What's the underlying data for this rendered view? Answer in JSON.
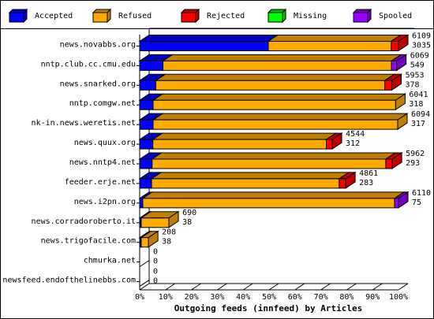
{
  "chart_data": {
    "type": "bar3d_stacked_horizontal",
    "title": "Outgoing feeds (innfeed) by Articles",
    "categories": [
      "news.novabbs.org",
      "nntp.club.cc.cmu.edu",
      "news.snarked.org",
      "nntp.comgw.net",
      "nk-in.news.weretis.net",
      "news.quux.org",
      "news.nntp4.net",
      "feeder.erje.net",
      "news.i2pn.org",
      "news.corradoroberto.it",
      "news.trigofacile.com",
      "chmurka.net",
      "newsfeed.endofthelinebbs.com"
    ],
    "series": [
      {
        "name": "Accepted",
        "color": "#0000ff",
        "values": [
          49.7,
          9.0,
          6.2,
          5.2,
          5.2,
          5.1,
          4.8,
          4.6,
          1.2,
          0.6,
          0.6,
          0,
          0
        ]
      },
      {
        "name": "Refused",
        "color": "#ffaa00",
        "values": [
          47.5,
          88.3,
          88.5,
          93.7,
          94.5,
          67.0,
          90.3,
          72.5,
          97.3,
          10.7,
          2.8,
          0,
          0
        ]
      },
      {
        "name": "Rejected",
        "color": "#ff0000",
        "values": [
          2.8,
          0,
          2.7,
          0,
          0,
          2.3,
          2.5,
          2.5,
          0,
          0,
          0,
          0,
          0
        ]
      },
      {
        "name": "Missing",
        "color": "#00ff00",
        "values": [
          0,
          0,
          0,
          0,
          0,
          0,
          0,
          0,
          0,
          0,
          0,
          0,
          0
        ]
      },
      {
        "name": "Spooled",
        "color": "#9900ff",
        "values": [
          0,
          2.0,
          0,
          0,
          0,
          0,
          0,
          0,
          1.5,
          0,
          0,
          0,
          0
        ]
      }
    ],
    "end_labels": [
      [
        6109,
        3035
      ],
      [
        6069,
        549
      ],
      [
        5953,
        378
      ],
      [
        6041,
        318
      ],
      [
        6094,
        317
      ],
      [
        4544,
        312
      ],
      [
        5962,
        293
      ],
      [
        4861,
        283
      ],
      [
        6110,
        75
      ],
      [
        690,
        38
      ],
      [
        208,
        38
      ],
      [
        0,
        0
      ],
      [
        0,
        0
      ]
    ],
    "xlim": [
      0,
      100
    ],
    "xticks": [
      {
        "value": 0,
        "label": "0%"
      },
      {
        "value": 10,
        "label": "10%"
      },
      {
        "value": 20,
        "label": "20%"
      },
      {
        "value": 30,
        "label": "30%"
      },
      {
        "value": 40,
        "label": "40%"
      },
      {
        "value": 50,
        "label": "50%"
      },
      {
        "value": 60,
        "label": "60%"
      },
      {
        "value": 70,
        "label": "70%"
      },
      {
        "value": 80,
        "label": "80%"
      },
      {
        "value": 90,
        "label": "90%"
      },
      {
        "value": 100,
        "label": "100%"
      }
    ]
  }
}
